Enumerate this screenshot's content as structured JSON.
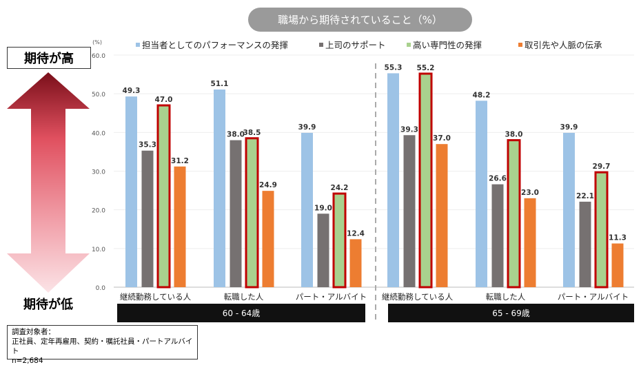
{
  "title": "職場から期待されていること（%）",
  "high_label": "期待が高",
  "low_label": "期待が低",
  "note": {
    "line1": "調査対象者：",
    "line2": "正社員、定年再雇用、契約・嘱託社員・パートアルバイト",
    "line3": "n=2,684"
  },
  "chart_data": {
    "type": "bar",
    "unit_label": "(%)",
    "ylim": [
      0,
      60
    ],
    "yticks": [
      "0.0",
      "10.0",
      "20.0",
      "30.0",
      "40.0",
      "50.0",
      "60.0"
    ],
    "age_groups": [
      "60 - 64歳",
      "65 - 69歳"
    ],
    "categories": [
      "継続勤務している人",
      "転職した人",
      "パート・アルバイト",
      "継続勤務している人",
      "転職した人",
      "パート・アルバイト"
    ],
    "legend_position": "top",
    "series": [
      {
        "name": "担当者としてのパフォーマンスの発揮",
        "color": "#9dc3e6",
        "values": [
          49.3,
          51.1,
          39.9,
          55.3,
          48.2,
          39.9
        ]
      },
      {
        "name": "上司のサポート",
        "color": "#767171",
        "values": [
          35.3,
          38.0,
          19.0,
          39.3,
          26.6,
          22.1
        ]
      },
      {
        "name": "高い専門性の発揮",
        "color": "#a9d18e",
        "highlight": "#c00000",
        "values": [
          47.0,
          38.5,
          24.2,
          55.2,
          38.0,
          29.7
        ]
      },
      {
        "name": "取引先や人脈の伝承",
        "color": "#ed7d31",
        "values": [
          31.2,
          24.9,
          12.4,
          37.0,
          23.0,
          11.3
        ]
      }
    ]
  }
}
